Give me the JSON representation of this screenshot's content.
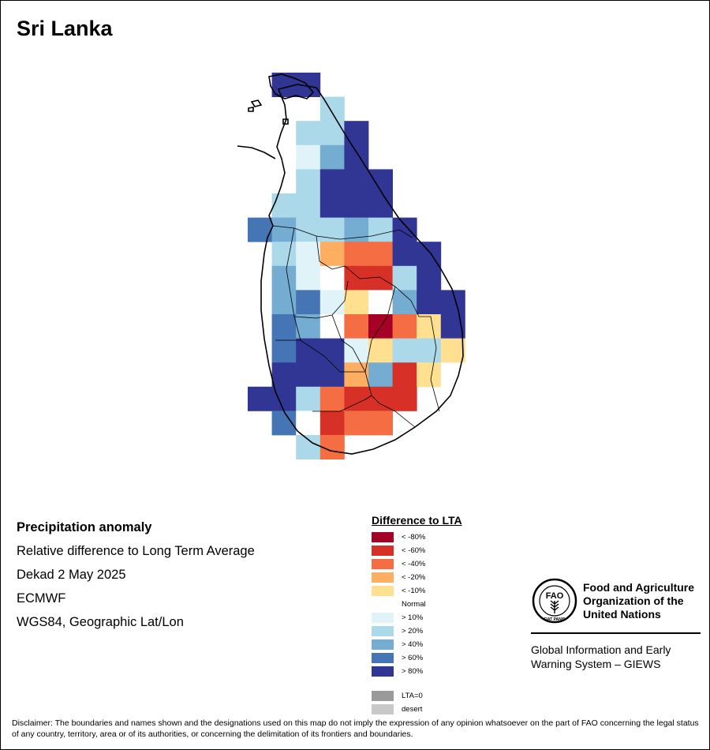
{
  "title": "Sri Lanka",
  "info": {
    "heading": "Precipitation anomaly",
    "subtitle": "Relative difference to Long Term Average",
    "period": "Dekad 2 May 2025",
    "model": "ECMWF",
    "projection": "WGS84, Geographic Lat/Lon"
  },
  "legend": {
    "title": "Difference to LTA",
    "classes": [
      {
        "label": "< -80%",
        "color": "#a50026"
      },
      {
        "label": "< -60%",
        "color": "#d73027"
      },
      {
        "label": "< -40%",
        "color": "#f46d43"
      },
      {
        "label": "< -20%",
        "color": "#fdae61"
      },
      {
        "label": "< -10%",
        "color": "#fee090"
      },
      {
        "label": "Normal",
        "color": "#ffffff"
      },
      {
        "label": "> 10%",
        "color": "#e0f3f8"
      },
      {
        "label": "> 20%",
        "color": "#abd9e9"
      },
      {
        "label": "> 40%",
        "color": "#74add1"
      },
      {
        "label": "> 60%",
        "color": "#4575b4"
      },
      {
        "label": "> 80%",
        "color": "#313695"
      }
    ],
    "extra": [
      {
        "label": "LTA=0",
        "color": "#9a9a9a"
      },
      {
        "label": "desert",
        "color": "#c8c8c8"
      }
    ]
  },
  "grid_codes": [
    "..X12...",
    "..887...",
    "..12.0..",
    "..A1.9..",
    "..100...",
    ".AB2BC..",
    "AB3.00X.",
    "HHLMMMNO",
    "...P.QRR",
    "..DEFG..",
    "...HIJK.",
    "..LMNOPQR",
    "...STUV.W",
    "...X..Y..",
    "...Z....",
    "........",
    "........"
  ],
  "cells": [
    [
      1,
      0,
      "> 80%"
    ],
    [
      2,
      0,
      "> 80%"
    ],
    [
      3,
      1,
      "> 20%"
    ],
    [
      2,
      2,
      "> 20%"
    ],
    [
      3,
      2,
      "> 20%"
    ],
    [
      4,
      2,
      "> 80%"
    ],
    [
      2,
      3,
      "> 10%"
    ],
    [
      3,
      3,
      "> 40%"
    ],
    [
      4,
      3,
      "> 80%"
    ],
    [
      2,
      4,
      "> 20%"
    ],
    [
      3,
      4,
      "> 80%"
    ],
    [
      4,
      4,
      "> 80%"
    ],
    [
      5,
      4,
      "> 80%"
    ],
    [
      1,
      5,
      "> 20%"
    ],
    [
      2,
      5,
      "> 20%"
    ],
    [
      3,
      5,
      "> 80%"
    ],
    [
      4,
      5,
      "> 80%"
    ],
    [
      5,
      5,
      "> 80%"
    ],
    [
      0,
      6,
      "> 60%"
    ],
    [
      1,
      6,
      "> 40%"
    ],
    [
      2,
      6,
      "> 20%"
    ],
    [
      3,
      6,
      "> 20%"
    ],
    [
      4,
      6,
      "> 40%"
    ],
    [
      5,
      6,
      "> 20%"
    ],
    [
      6,
      6,
      "> 80%"
    ],
    [
      1,
      7,
      "> 20%"
    ],
    [
      2,
      7,
      "> 10%"
    ],
    [
      3,
      7,
      "< -20%"
    ],
    [
      4,
      7,
      "< -40%"
    ],
    [
      5,
      7,
      "< -40%"
    ],
    [
      6,
      7,
      "> 80%"
    ],
    [
      7,
      7,
      "> 80%"
    ],
    [
      1,
      8,
      "> 40%"
    ],
    [
      2,
      8,
      "> 10%"
    ],
    [
      3,
      8,
      "Normal"
    ],
    [
      4,
      8,
      "< -60%"
    ],
    [
      5,
      8,
      "< -60%"
    ],
    [
      6,
      8,
      "> 20%"
    ],
    [
      7,
      8,
      "> 80%"
    ],
    [
      1,
      9,
      "> 40%"
    ],
    [
      2,
      9,
      "> 60%"
    ],
    [
      3,
      9,
      "> 10%"
    ],
    [
      4,
      9,
      "< -10%"
    ],
    [
      5,
      9,
      "Normal"
    ],
    [
      6,
      9,
      "> 40%"
    ],
    [
      7,
      9,
      "> 80%"
    ],
    [
      8,
      9,
      "> 80%"
    ],
    [
      1,
      10,
      "> 60%"
    ],
    [
      2,
      10,
      "> 40%"
    ],
    [
      3,
      10,
      "Normal"
    ],
    [
      4,
      10,
      "< -40%"
    ],
    [
      5,
      10,
      "< -80%"
    ],
    [
      6,
      10,
      "< -40%"
    ],
    [
      7,
      10,
      "< -10%"
    ],
    [
      8,
      10,
      "> 80%"
    ],
    [
      1,
      11,
      "> 60%"
    ],
    [
      2,
      11,
      "> 80%"
    ],
    [
      3,
      11,
      "> 80%"
    ],
    [
      4,
      11,
      "> 10%"
    ],
    [
      5,
      11,
      "< -10%"
    ],
    [
      6,
      11,
      "> 20%"
    ],
    [
      7,
      11,
      "> 20%"
    ],
    [
      8,
      11,
      "< -10%"
    ],
    [
      1,
      12,
      "> 80%"
    ],
    [
      2,
      12,
      "> 80%"
    ],
    [
      3,
      12,
      "> 80%"
    ],
    [
      4,
      12,
      "< -20%"
    ],
    [
      5,
      12,
      "> 40%"
    ],
    [
      6,
      12,
      "< -60%"
    ],
    [
      7,
      12,
      "< -10%"
    ],
    [
      8,
      12,
      "Normal"
    ],
    [
      0,
      13,
      "> 80%"
    ],
    [
      1,
      13,
      "> 80%"
    ],
    [
      2,
      13,
      "> 20%"
    ],
    [
      3,
      13,
      "< -40%"
    ],
    [
      4,
      13,
      "< -60%"
    ],
    [
      5,
      13,
      "< -60%"
    ],
    [
      6,
      13,
      "< -60%"
    ],
    [
      1,
      14,
      "> 60%"
    ],
    [
      2,
      14,
      "Normal"
    ],
    [
      3,
      14,
      "< -60%"
    ],
    [
      4,
      14,
      "< -40%"
    ],
    [
      5,
      14,
      "< -40%"
    ],
    [
      2,
      15,
      "> 20%"
    ],
    [
      3,
      15,
      "< -40%"
    ]
  ],
  "logo": {
    "org_name": "Food and Agriculture Organization of the United Nations",
    "system_name": "Global Information and Early Warning System – GIEWS",
    "emblem_letters": "FAO",
    "emblem_motto": "FIAT PANIS"
  },
  "disclaimer": "Disclaimer: The boundaries and names shown and the designations used on this map do not imply the expression of any opinion whatsoever on the part of FAO concerning the legal status of any country, territory, area or of its authorities, or concerning the delimitation of its frontiers and boundaries."
}
